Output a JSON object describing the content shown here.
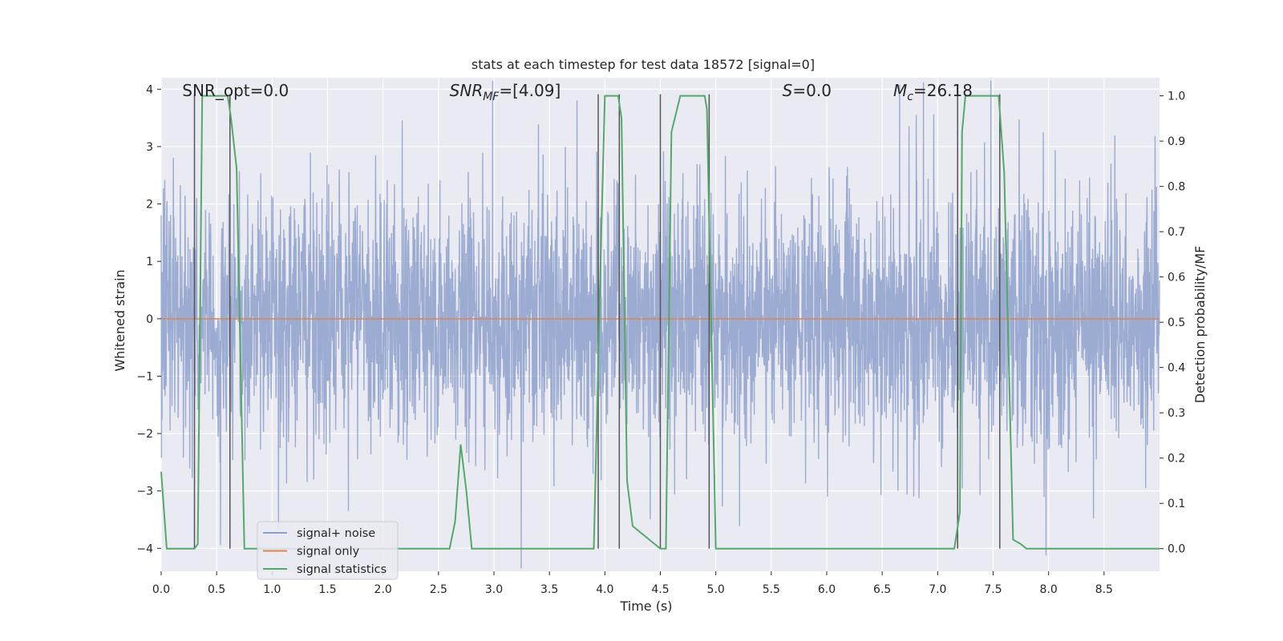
{
  "chart_data": {
    "type": "line",
    "title": "stats at each timestep for test data 18572 [signal=0]",
    "xlabel": "Time (s)",
    "ylabel": "Whitened strain",
    "y2label": "Detection probability/MF",
    "xlim": [
      0,
      9.0
    ],
    "ylim": [
      -4.4,
      4.2
    ],
    "y2lim": [
      -0.05,
      1.04
    ],
    "x_ticks": [
      0.0,
      0.5,
      1.0,
      1.5,
      2.0,
      2.5,
      3.0,
      3.5,
      4.0,
      4.5,
      5.0,
      5.5,
      6.0,
      6.5,
      7.0,
      7.5,
      8.0,
      8.5
    ],
    "x_tick_labels": [
      "0.0",
      "0.5",
      "1.0",
      "1.5",
      "2.0",
      "2.5",
      "3.0",
      "3.5",
      "4.0",
      "4.5",
      "5.0",
      "5.5",
      "6.0",
      "6.5",
      "7.0",
      "7.5",
      "8.0",
      "8.5"
    ],
    "y_ticks": [
      4,
      3,
      2,
      1,
      0,
      -1,
      -2,
      -3,
      -4
    ],
    "y_tick_labels": [
      "4",
      "3",
      "2",
      "1",
      "0",
      "−1",
      "−2",
      "−3",
      "−4"
    ],
    "y2_ticks": [
      1.0,
      0.9,
      0.8,
      0.7,
      0.6,
      0.5,
      0.4,
      0.3,
      0.2,
      0.1,
      0.0
    ],
    "y2_tick_labels": [
      "1.0",
      "0.9",
      "0.8",
      "0.7",
      "0.6",
      "0.5",
      "0.4",
      "0.3",
      "0.2",
      "0.1",
      "0.0"
    ],
    "grid": true,
    "legend_position": "lower-left",
    "colors": {
      "noise": "#8da0cb",
      "signal": "#dd8452",
      "stats": "#55a868",
      "vlines": "#555555",
      "background": "#eaeaf2",
      "grid": "#ffffff"
    },
    "series": [
      {
        "name": "signal+ noise",
        "axis": "left",
        "kind": "noise",
        "sample_rate_hz": 2048,
        "approx_envelope": [
          -3.4,
          3.4
        ]
      },
      {
        "name": "signal only",
        "axis": "left",
        "x": [
          0.0,
          9.0
        ],
        "y": [
          0.0,
          0.0
        ]
      },
      {
        "name": "signal statistics",
        "axis": "right",
        "x": [
          0.0,
          0.05,
          0.3,
          0.33,
          0.37,
          0.38,
          0.6,
          0.63,
          0.68,
          0.75,
          0.8,
          2.6,
          2.65,
          2.7,
          2.75,
          2.8,
          3.5,
          3.9,
          3.97,
          4.0,
          4.12,
          4.15,
          4.2,
          4.25,
          4.5,
          4.55,
          4.6,
          4.68,
          4.9,
          4.92,
          4.95,
          5.0,
          5.05,
          7.15,
          7.2,
          7.22,
          7.25,
          7.55,
          7.6,
          7.68,
          7.75,
          7.8,
          9.0
        ],
        "y": [
          0.17,
          0.0,
          0.0,
          0.01,
          1.0,
          1.0,
          1.0,
          0.95,
          0.84,
          0.0,
          0.0,
          0.0,
          0.06,
          0.23,
          0.13,
          0.0,
          0.0,
          0.0,
          0.72,
          1.0,
          1.0,
          0.95,
          0.15,
          0.05,
          0.0,
          0.0,
          0.92,
          1.0,
          1.0,
          0.97,
          0.6,
          0.0,
          0.0,
          0.0,
          0.08,
          0.92,
          1.0,
          1.0,
          0.83,
          0.02,
          0.01,
          0.0,
          0.0
        ]
      }
    ],
    "vertical_lines": [
      0.3,
      0.62,
      3.94,
      4.13,
      4.5,
      4.94,
      7.18,
      7.56
    ],
    "annotations": [
      {
        "text": "SNR_opt=0.0",
        "x": 0.19,
        "y": 3.88
      },
      {
        "text": "SNR_MF=[4.09]",
        "x": 2.6,
        "y": 3.88
      },
      {
        "text": "S=0.0",
        "x": 5.6,
        "y": 3.88
      },
      {
        "text": "M_c=26.18",
        "x": 6.6,
        "y": 3.88
      }
    ],
    "legend": [
      "signal+ noise",
      "signal only",
      "signal statistics"
    ]
  }
}
